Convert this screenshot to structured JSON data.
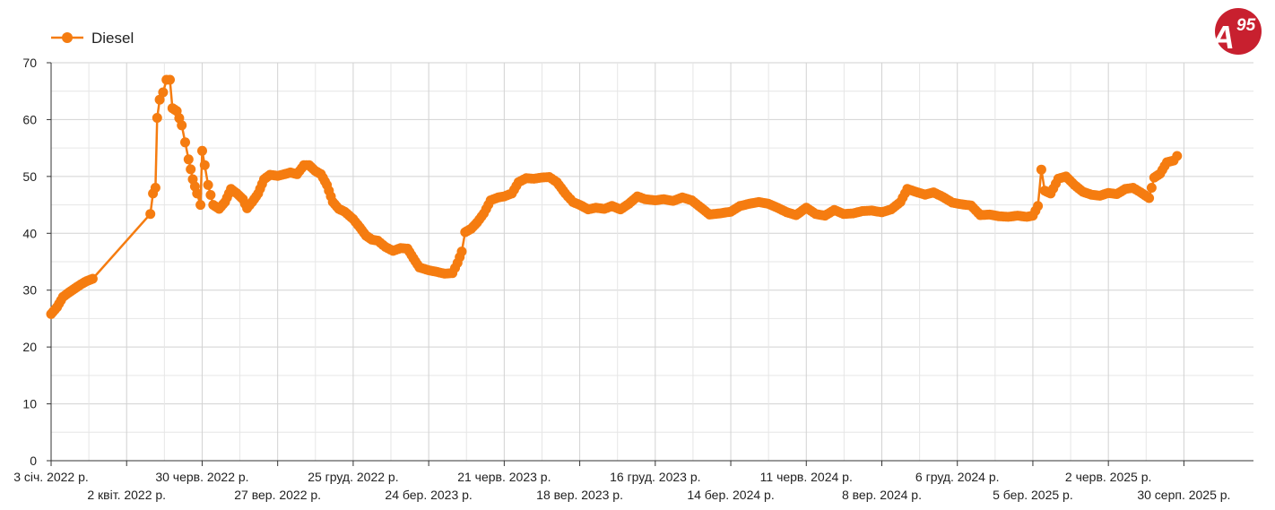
{
  "logo": {
    "text_main": "A",
    "text_super": "95",
    "color": "#c8202f"
  },
  "chart_data": {
    "type": "line",
    "legend": {
      "label": "Diesel",
      "placement": "top-left"
    },
    "color": "#f57c10",
    "ylim": [
      0,
      70
    ],
    "yticks": [
      0,
      10,
      20,
      30,
      40,
      50,
      60,
      70
    ],
    "grid": true,
    "x_range": [
      "2022-01-03",
      "2025-11-20"
    ],
    "xtick_labels": [
      {
        "date": "2022-01-03",
        "label": "3 січ. 2022 р."
      },
      {
        "date": "2022-04-02",
        "label": "2 квіт. 2022 р."
      },
      {
        "date": "2022-06-30",
        "label": "30 черв. 2022 р."
      },
      {
        "date": "2022-09-27",
        "label": "27 вер. 2022 р."
      },
      {
        "date": "2022-12-25",
        "label": "25 груд. 2022 р."
      },
      {
        "date": "2023-03-24",
        "label": "24 бер. 2023 р."
      },
      {
        "date": "2023-06-21",
        "label": "21 черв. 2023 р."
      },
      {
        "date": "2023-09-18",
        "label": "18 вер. 2023 р."
      },
      {
        "date": "2023-12-16",
        "label": "16 груд. 2023 р."
      },
      {
        "date": "2024-03-14",
        "label": "14 бер. 2024 р."
      },
      {
        "date": "2024-06-11",
        "label": "11 черв. 2024 р."
      },
      {
        "date": "2024-09-08",
        "label": "8 вер. 2024 р."
      },
      {
        "date": "2024-12-06",
        "label": "6 груд. 2024 р."
      },
      {
        "date": "2025-03-05",
        "label": "5 бер. 2025 р."
      },
      {
        "date": "2025-06-02",
        "label": "2 черв. 2025 р."
      },
      {
        "date": "2025-08-30",
        "label": "30 серп. 2025 р."
      }
    ],
    "series": [
      {
        "name": "Diesel",
        "points": [
          [
            "2022-01-03",
            25.8
          ],
          [
            "2022-01-10",
            27.0
          ],
          [
            "2022-01-17",
            28.8
          ],
          [
            "2022-01-24",
            29.6
          ],
          [
            "2022-01-31",
            30.3
          ],
          [
            "2022-02-07",
            31.0
          ],
          [
            "2022-02-14",
            31.6
          ],
          [
            "2022-02-21",
            32.0
          ],
          [
            "2022-04-30",
            43.4
          ],
          [
            "2022-05-03",
            47.0
          ],
          [
            "2022-05-06",
            48.0
          ],
          [
            "2022-05-08",
            60.3
          ],
          [
            "2022-05-11",
            63.5
          ],
          [
            "2022-05-15",
            64.8
          ],
          [
            "2022-05-19",
            67.0
          ],
          [
            "2022-05-23",
            67.0
          ],
          [
            "2022-05-26",
            62.0
          ],
          [
            "2022-05-31",
            61.5
          ],
          [
            "2022-06-06",
            59.0
          ],
          [
            "2022-06-10",
            56.0
          ],
          [
            "2022-06-14",
            53.0
          ],
          [
            "2022-06-19",
            49.5
          ],
          [
            "2022-06-24",
            47.0
          ],
          [
            "2022-06-28",
            45.0
          ],
          [
            "2022-06-30",
            54.5
          ],
          [
            "2022-07-03",
            52.0
          ],
          [
            "2022-07-07",
            48.5
          ],
          [
            "2022-07-13",
            45.0
          ],
          [
            "2022-07-20",
            44.3
          ],
          [
            "2022-07-27",
            45.5
          ],
          [
            "2022-08-03",
            47.8
          ],
          [
            "2022-08-10",
            47.0
          ],
          [
            "2022-08-17",
            46.0
          ],
          [
            "2022-08-22",
            44.4
          ],
          [
            "2022-08-28",
            45.5
          ],
          [
            "2022-09-04",
            47.0
          ],
          [
            "2022-09-11",
            49.5
          ],
          [
            "2022-09-18",
            50.3
          ],
          [
            "2022-09-27",
            50.1
          ],
          [
            "2022-10-05",
            50.4
          ],
          [
            "2022-10-12",
            50.7
          ],
          [
            "2022-10-20",
            50.4
          ],
          [
            "2022-10-28",
            52.0
          ],
          [
            "2022-11-03",
            52.0
          ],
          [
            "2022-11-10",
            51.0
          ],
          [
            "2022-11-17",
            50.4
          ],
          [
            "2022-11-24",
            48.5
          ],
          [
            "2022-12-01",
            45.5
          ],
          [
            "2022-12-08",
            44.3
          ],
          [
            "2022-12-15",
            43.8
          ],
          [
            "2022-12-25",
            42.5
          ],
          [
            "2023-01-02",
            41.0
          ],
          [
            "2023-01-09",
            39.6
          ],
          [
            "2023-01-16",
            38.9
          ],
          [
            "2023-01-23",
            38.7
          ],
          [
            "2023-02-01",
            37.6
          ],
          [
            "2023-02-10",
            36.9
          ],
          [
            "2023-02-19",
            37.4
          ],
          [
            "2023-02-27",
            37.3
          ],
          [
            "2023-03-06",
            35.6
          ],
          [
            "2023-03-13",
            34.0
          ],
          [
            "2023-03-24",
            33.5
          ],
          [
            "2023-04-03",
            33.2
          ],
          [
            "2023-04-12",
            32.9
          ],
          [
            "2023-04-21",
            33.0
          ],
          [
            "2023-04-27",
            34.8
          ],
          [
            "2023-05-02",
            36.8
          ],
          [
            "2023-05-06",
            40.2
          ],
          [
            "2023-05-13",
            40.8
          ],
          [
            "2023-05-20",
            41.9
          ],
          [
            "2023-05-28",
            43.5
          ],
          [
            "2023-06-05",
            45.8
          ],
          [
            "2023-06-14",
            46.3
          ],
          [
            "2023-06-21",
            46.5
          ],
          [
            "2023-06-30",
            47.0
          ],
          [
            "2023-07-08",
            49.0
          ],
          [
            "2023-07-17",
            49.7
          ],
          [
            "2023-07-26",
            49.6
          ],
          [
            "2023-08-04",
            49.8
          ],
          [
            "2023-08-13",
            49.9
          ],
          [
            "2023-08-22",
            49.0
          ],
          [
            "2023-09-01",
            47.0
          ],
          [
            "2023-09-10",
            45.5
          ],
          [
            "2023-09-18",
            45.0
          ],
          [
            "2023-09-28",
            44.2
          ],
          [
            "2023-10-07",
            44.5
          ],
          [
            "2023-10-17",
            44.3
          ],
          [
            "2023-10-26",
            44.8
          ],
          [
            "2023-11-05",
            44.2
          ],
          [
            "2023-11-15",
            45.2
          ],
          [
            "2023-11-25",
            46.5
          ],
          [
            "2023-12-04",
            46.0
          ],
          [
            "2023-12-16",
            45.8
          ],
          [
            "2023-12-26",
            46.0
          ],
          [
            "2024-01-06",
            45.7
          ],
          [
            "2024-01-17",
            46.3
          ],
          [
            "2024-01-28",
            45.8
          ],
          [
            "2024-02-08",
            44.5
          ],
          [
            "2024-02-18",
            43.3
          ],
          [
            "2024-03-01",
            43.5
          ],
          [
            "2024-03-14",
            43.8
          ],
          [
            "2024-03-25",
            44.8
          ],
          [
            "2024-04-05",
            45.2
          ],
          [
            "2024-04-16",
            45.5
          ],
          [
            "2024-04-27",
            45.2
          ],
          [
            "2024-05-08",
            44.5
          ],
          [
            "2024-05-19",
            43.7
          ],
          [
            "2024-05-30",
            43.2
          ],
          [
            "2024-06-11",
            44.5
          ],
          [
            "2024-06-22",
            43.4
          ],
          [
            "2024-07-03",
            43.1
          ],
          [
            "2024-07-14",
            44.1
          ],
          [
            "2024-07-25",
            43.4
          ],
          [
            "2024-08-05",
            43.5
          ],
          [
            "2024-08-16",
            43.9
          ],
          [
            "2024-08-27",
            44.0
          ],
          [
            "2024-09-08",
            43.7
          ],
          [
            "2024-09-19",
            44.2
          ],
          [
            "2024-09-30",
            45.5
          ],
          [
            "2024-10-08",
            47.8
          ],
          [
            "2024-10-18",
            47.3
          ],
          [
            "2024-10-29",
            46.8
          ],
          [
            "2024-11-08",
            47.2
          ],
          [
            "2024-11-19",
            46.4
          ],
          [
            "2024-11-30",
            45.4
          ],
          [
            "2024-12-11",
            45.1
          ],
          [
            "2024-12-22",
            44.9
          ],
          [
            "2025-01-02",
            43.2
          ],
          [
            "2025-01-13",
            43.3
          ],
          [
            "2025-01-24",
            43.0
          ],
          [
            "2025-02-04",
            42.9
          ],
          [
            "2025-02-15",
            43.1
          ],
          [
            "2025-02-26",
            42.9
          ],
          [
            "2025-03-05",
            43.1
          ],
          [
            "2025-03-11",
            44.8
          ],
          [
            "2025-03-15",
            51.2
          ],
          [
            "2025-03-19",
            47.5
          ],
          [
            "2025-03-26",
            47.0
          ],
          [
            "2025-04-04",
            49.6
          ],
          [
            "2025-04-13",
            50.0
          ],
          [
            "2025-04-23",
            48.5
          ],
          [
            "2025-05-03",
            47.3
          ],
          [
            "2025-05-13",
            46.8
          ],
          [
            "2025-05-23",
            46.6
          ],
          [
            "2025-06-02",
            47.1
          ],
          [
            "2025-06-12",
            46.9
          ],
          [
            "2025-06-22",
            47.8
          ],
          [
            "2025-07-01",
            48.0
          ],
          [
            "2025-07-10",
            47.2
          ],
          [
            "2025-07-20",
            46.2
          ],
          [
            "2025-07-26",
            49.8
          ],
          [
            "2025-08-02",
            50.5
          ],
          [
            "2025-08-10",
            52.5
          ],
          [
            "2025-08-18",
            52.8
          ],
          [
            "2025-08-22",
            53.6
          ]
        ]
      }
    ]
  }
}
